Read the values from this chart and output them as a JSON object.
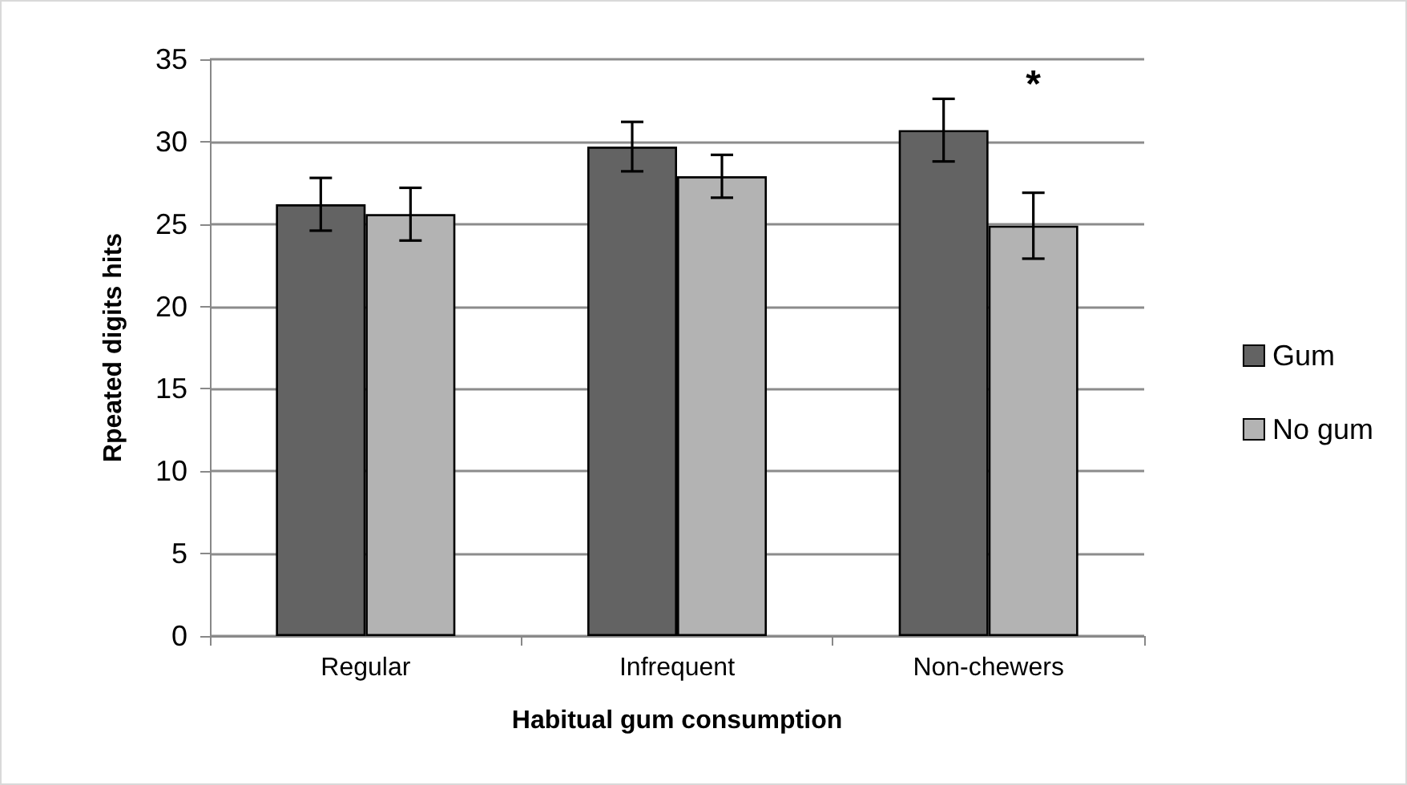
{
  "chart_data": {
    "type": "bar",
    "xlabel": "Habitual gum consumption",
    "ylabel": "Rpeated digits hits",
    "categories": [
      "Regular",
      "Infrequent",
      "Non-chewers"
    ],
    "series": [
      {
        "name": "Gum",
        "color": "#636363",
        "values": [
          26.2,
          29.7,
          30.7
        ],
        "errors": [
          1.6,
          1.5,
          1.9
        ]
      },
      {
        "name": "No gum",
        "color": "#b3b3b3",
        "values": [
          25.6,
          27.9,
          24.9
        ],
        "errors": [
          1.6,
          1.3,
          2.0
        ]
      }
    ],
    "annotations": [
      "*"
    ],
    "ylim": [
      0,
      35
    ],
    "yticks": [
      0,
      5,
      10,
      15,
      20,
      25,
      30,
      35
    ],
    "grid": "y",
    "legend": "right"
  }
}
